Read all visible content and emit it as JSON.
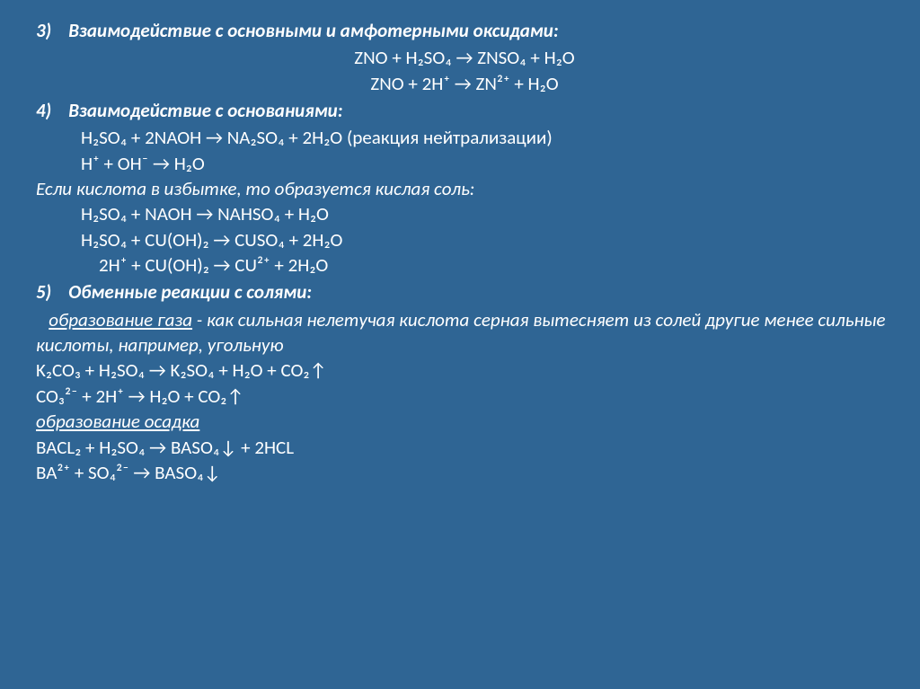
{
  "colors": {
    "background": "#2f6594",
    "text": "#ffffff"
  },
  "typography": {
    "base_fontsize_pt": 16,
    "heading_style": "bold italic",
    "note_style": "italic",
    "font_family": "Calibri, Arial, sans-serif"
  },
  "sections": {
    "s3": {
      "number": "3)",
      "title": "Взаимодействие с основными и амфотерными  оксидами:",
      "eq1": "ZNO + H₂SO₄ → ZNSO₄ + H₂O",
      "eq2": "ZNO + 2H⁺ → ZN²⁺ + H₂O"
    },
    "s4": {
      "number": "4)",
      "title": "Взаимодействие с основаниями:",
      "eq1": "H₂SO₄ + 2NAOH → NA₂SO₄ + 2H₂O (реакция нейтрализации)",
      "eq2": "H⁺ + OH⁻ → H₂O",
      "note": "Если кислота в избытке, то образуется кислая соль:",
      "eq3": "H₂SO₄ + NAOH → NAHSO₄ + H₂O",
      "eq4": "H₂SO₄ + CU(OH)₂ → CUSO₄ + 2H₂O",
      "eq5": "2H⁺ + CU(OH)₂ → CU²⁺ + 2H₂O"
    },
    "s5": {
      "number": "5)",
      "title": "Обменные реакции с солями:",
      "gas_label": "образование газа",
      "gas_dash": " -  ",
      "gas_note": "как сильная нелетучая кислота серная вытесняет из солей другие менее сильные кислоты, например, угольную",
      "eq1": "K₂CO₃ + H₂SO₄ → K₂SO₄ + H₂O + CO₂↑",
      "eq2": "CO₃²⁻ + 2H⁺ → H₂O + CO₂↑",
      "precip_label": "образование осадка",
      "eq3": "BACL₂ + H₂SO₄ → BASO₄↓ + 2HCL",
      "eq4": "BA²⁺ + SO₄²⁻ → BASO₄↓"
    }
  }
}
